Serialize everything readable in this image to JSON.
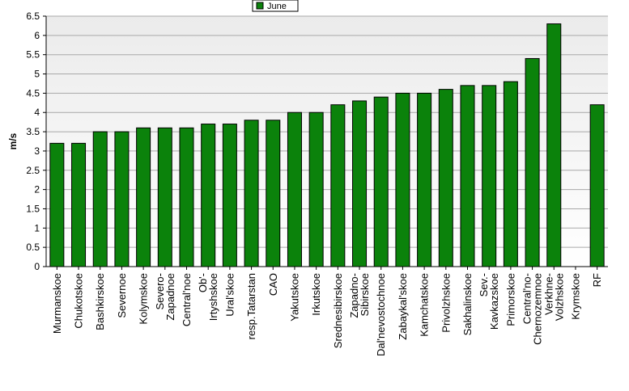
{
  "chart_data": {
    "type": "bar",
    "categories": [
      "Murmanskoe",
      "Chukotskoe",
      "Bashkirskoe",
      "Severnoe",
      "Kolymskoe",
      "Severo-\nZapadnoe",
      "Central'noe",
      "Ob'-\nIrtyshskoe",
      "Ural'skoe",
      "resp.Tatarstan",
      "CAO",
      "Yakutskoe",
      "Irkutskoe",
      "Srednesibirskoe",
      "Zapadno-\nSibirskoe",
      "Dal'nevostochnoe",
      "Zabaykal'skoe",
      "Kamchatskoe",
      "Privolzhskoe",
      "Sakhalinskoe",
      "Sev.-\nKavkazskoe",
      "Primorskoe",
      "Central'no-\nChernozemnoe",
      "Verkhne-\nVolzhskoe",
      "Krymskoe",
      "RF"
    ],
    "series": [
      {
        "name": "June",
        "color": "#0b820b",
        "values": [
          3.2,
          3.2,
          3.5,
          3.5,
          3.6,
          3.6,
          3.6,
          3.7,
          3.7,
          3.8,
          3.8,
          4.0,
          4.0,
          4.2,
          4.3,
          4.4,
          4.5,
          4.5,
          4.6,
          4.7,
          4.7,
          4.8,
          5.4,
          6.3,
          null,
          4.2
        ]
      }
    ],
    "ylabel": "m/s",
    "xlabel": "",
    "ylim": [
      0,
      6.5
    ],
    "yticks": [
      "0",
      "0.5",
      "1",
      "1.5",
      "2",
      "2.5",
      "3",
      "3.5",
      "4",
      "4.5",
      "5",
      "5.5",
      "6",
      "6.5"
    ],
    "grid": true,
    "legend_position": "top-center"
  }
}
